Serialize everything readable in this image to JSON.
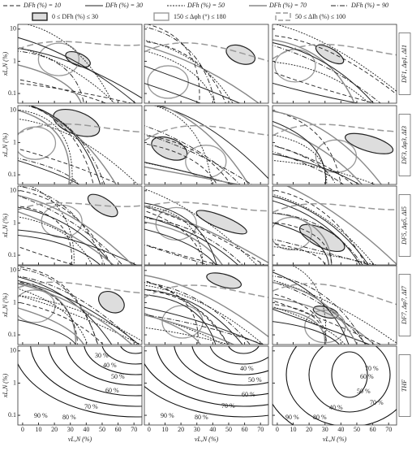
{
  "legend": {
    "lines": [
      "DFh (%) = 10",
      "DFh (%) = 30",
      "DFh (%) = 50",
      "DFh (%) = 70",
      "DFh (%) = 90"
    ],
    "regions": [
      "0 ≤ DFh (%) ≤ 30",
      "150 ≤ Δφh (°) ≤ 180",
      "50 ≤ ΔIh (%) ≤ 100"
    ]
  },
  "axes": {
    "x_label": "vL,N (%)",
    "y_label": "xL,N (%)",
    "xlim": [
      -3,
      75
    ],
    "xticks": [
      0,
      10,
      20,
      30,
      40,
      50,
      60,
      70
    ],
    "ylim": [
      0.05,
      14
    ],
    "yticks": [
      0.1,
      1,
      10
    ],
    "y_log": true
  },
  "row_labels": [
    "DF1, Δφ1, ΔI1",
    "DF3, Δφ3, ΔI3",
    "DF5, Δφ5, ΔI5",
    "DF7, Δφ7, ΔI7",
    "THF"
  ],
  "thf_labels": [
    [
      "30 %",
      "40 %",
      "50 %",
      "60 %",
      "70 %",
      "80 %",
      "90 %"
    ],
    [
      "40 %",
      "50 %",
      "60 %",
      "70 %",
      "80 %",
      "90 %"
    ],
    [
      "70 %",
      "60 %",
      "50 %",
      "40 %",
      "90 %",
      "80 %",
      "70 %"
    ]
  ]
}
